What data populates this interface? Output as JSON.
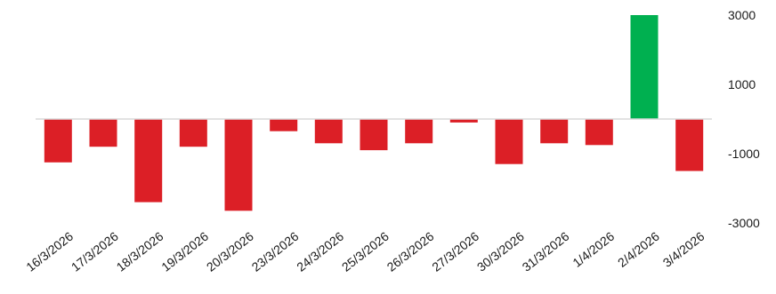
{
  "chart_data": {
    "type": "bar",
    "title": "",
    "xlabel": "",
    "ylabel": "",
    "categories": [
      "16/3/2026",
      "17/3/2026",
      "18/3/2026",
      "19/3/2026",
      "20/3/2026",
      "23/3/2026",
      "24/3/2026",
      "25/3/2026",
      "26/3/2026",
      "27/3/2026",
      "30/3/2026",
      "31/3/2026",
      "1/4/2026",
      "2/4/2026",
      "3/4/2026"
    ],
    "values": [
      -1250,
      -800,
      -2400,
      -800,
      -2650,
      -350,
      -700,
      -900,
      -700,
      -100,
      -1300,
      -700,
      -750,
      3000,
      -1500
    ],
    "ylim": [
      -3500,
      3500
    ],
    "yticks": [
      3000,
      1000,
      -1000,
      -3000
    ],
    "y_axis_position": "right",
    "grid": false,
    "colors": {
      "positive": "#00b050",
      "negative": "#dc1f26",
      "zero_line": "#d9d9d9"
    }
  }
}
